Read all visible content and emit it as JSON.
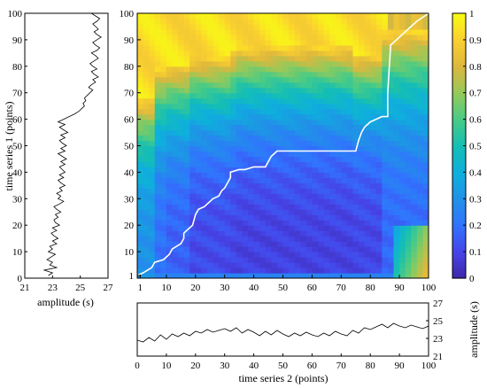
{
  "chart_data": [
    {
      "type": "line",
      "panel": "left",
      "xlabel": "amplitude (s)",
      "ylabel": "time series 1 (points)",
      "xlim": [
        21,
        27
      ],
      "ylim": [
        0,
        100
      ],
      "xticks": [
        21,
        23,
        25,
        27
      ],
      "yticks": [
        0,
        10,
        20,
        30,
        40,
        50,
        60,
        70,
        80,
        90,
        100
      ],
      "x": [
        22.7,
        23.0,
        22.4,
        23.3,
        22.8,
        23.0,
        22.6,
        22.9,
        23.2,
        22.7,
        23.0,
        22.8,
        23.3,
        23.0,
        23.4,
        23.1,
        22.9,
        23.3,
        23.0,
        23.5,
        23.2,
        23.1,
        23.4,
        23.2,
        23.6,
        23.3,
        23.1,
        23.5,
        23.8,
        23.4,
        23.6,
        23.3,
        23.7,
        23.5,
        23.9,
        23.6,
        23.4,
        23.8,
        23.5,
        23.9,
        23.7,
        23.5,
        23.9,
        23.6,
        24.0,
        23.7,
        23.4,
        23.9,
        23.6,
        24.0,
        23.7,
        23.5,
        23.9,
        23.6,
        24.1,
        23.8,
        23.5,
        23.9,
        23.4,
        23.8,
        24.2,
        24.6,
        24.9,
        25.1,
        25.3,
        25.2,
        25.4,
        25.3,
        25.5,
        25.7,
        25.9,
        25.6,
        25.8,
        26.1,
        25.9,
        26.3,
        26.0,
        25.8,
        26.2,
        25.9,
        25.7,
        26.0,
        26.3,
        26.1,
        25.8,
        26.2,
        26.4,
        26.1,
        25.9,
        26.2,
        26.5,
        26.2,
        26.0,
        26.3,
        26.1,
        25.9,
        26.2,
        26.4,
        26.1,
        25.8
      ],
      "y": [
        1,
        2,
        3,
        4,
        5,
        6,
        7,
        8,
        9,
        10,
        11,
        12,
        13,
        14,
        15,
        16,
        17,
        18,
        19,
        20,
        21,
        22,
        23,
        24,
        25,
        26,
        27,
        28,
        29,
        30,
        31,
        32,
        33,
        34,
        35,
        36,
        37,
        38,
        39,
        40,
        41,
        42,
        43,
        44,
        45,
        46,
        47,
        48,
        49,
        50,
        51,
        52,
        53,
        54,
        55,
        56,
        57,
        58,
        59,
        60,
        61,
        62,
        63,
        64,
        65,
        66,
        67,
        68,
        69,
        70,
        71,
        72,
        73,
        74,
        75,
        76,
        77,
        78,
        79,
        80,
        81,
        82,
        83,
        84,
        85,
        86,
        87,
        88,
        89,
        90,
        91,
        92,
        93,
        94,
        95,
        96,
        97,
        98,
        99,
        100
      ]
    },
    {
      "type": "heatmap",
      "panel": "main",
      "xlim": [
        0,
        100
      ],
      "ylim": [
        0,
        100
      ],
      "xticks": [
        1,
        10,
        20,
        30,
        40,
        50,
        60,
        70,
        80,
        90,
        100
      ],
      "yticks": [
        1,
        10,
        20,
        30,
        40,
        50,
        60,
        70,
        80,
        90,
        100
      ],
      "colormap": "parula",
      "clim": [
        0,
        1
      ],
      "colorbar_ticks": [
        0,
        0.1,
        0.2,
        0.3,
        0.4,
        0.5,
        0.6,
        0.7,
        0.8,
        0.9,
        1
      ],
      "column_bands": [
        {
          "x0": 0,
          "x1": 6,
          "top_edge": 68,
          "floor": 0.3
        },
        {
          "x0": 6,
          "x1": 11,
          "top_edge": 80,
          "floor": 0.2
        },
        {
          "x0": 11,
          "x1": 19,
          "top_edge": 81,
          "floor": 0.16
        },
        {
          "x0": 19,
          "x1": 32,
          "top_edge": 84,
          "floor": 0.11
        },
        {
          "x0": 32,
          "x1": 34,
          "top_edge": 86,
          "floor": 0.1
        },
        {
          "x0": 34,
          "x1": 75,
          "top_edge": 88,
          "floor": 0.09
        },
        {
          "x0": 75,
          "x1": 85,
          "top_edge": 85,
          "floor": 0.1
        },
        {
          "x0": 85,
          "x1": 100,
          "top_edge": 94,
          "floor": 0.18
        }
      ],
      "warping_path": {
        "x": [
          0,
          2,
          5,
          6,
          9,
          11,
          12,
          15,
          16,
          16,
          17,
          19,
          20,
          21,
          23,
          24,
          25,
          26,
          28,
          29,
          30,
          31,
          32,
          32,
          35,
          37,
          40,
          44,
          45,
          46,
          48,
          50,
          55,
          60,
          65,
          70,
          75,
          76,
          77,
          78,
          79,
          80,
          82,
          84,
          86,
          86,
          87,
          90,
          93,
          96,
          100
        ],
        "y": [
          1,
          2,
          4,
          6,
          7,
          9,
          11,
          13,
          15,
          17,
          18,
          20,
          24,
          26,
          27,
          28,
          29,
          30,
          31,
          33,
          34,
          36,
          38,
          40,
          41,
          41,
          42,
          42,
          44,
          46,
          48,
          48,
          48,
          48,
          48,
          48,
          48,
          52,
          55,
          57,
          58,
          59,
          60,
          61,
          61,
          70,
          88,
          91,
          94,
          97,
          100
        ]
      }
    },
    {
      "type": "line",
      "panel": "bottom",
      "xlabel": "time series 2 (points)",
      "ylabel": "amplitude (s)",
      "xlim": [
        0,
        100
      ],
      "ylim": [
        21,
        27
      ],
      "xticks": [
        0,
        10,
        20,
        30,
        40,
        50,
        60,
        70,
        80,
        90,
        100
      ],
      "yticks": [
        21,
        23,
        25,
        27
      ],
      "x": [
        0,
        2,
        4,
        6,
        8,
        10,
        12,
        14,
        16,
        18,
        20,
        22,
        24,
        26,
        28,
        30,
        32,
        34,
        36,
        38,
        40,
        42,
        44,
        46,
        48,
        50,
        52,
        54,
        56,
        58,
        60,
        62,
        64,
        66,
        68,
        70,
        72,
        74,
        76,
        78,
        80,
        82,
        84,
        86,
        88,
        90,
        92,
        94,
        96,
        98,
        100
      ],
      "y": [
        22.8,
        22.6,
        23.1,
        22.7,
        23.4,
        22.9,
        23.5,
        23.2,
        23.6,
        23.3,
        23.8,
        23.6,
        24.0,
        23.7,
        23.9,
        24.1,
        23.8,
        24.2,
        23.6,
        24.0,
        23.7,
        23.3,
        23.8,
        23.4,
        23.9,
        23.5,
        23.2,
        23.6,
        23.3,
        23.7,
        23.4,
        23.2,
        23.6,
        23.3,
        23.8,
        23.5,
        23.3,
        23.9,
        23.6,
        24.2,
        24.0,
        24.3,
        24.6,
        24.2,
        24.7,
        24.4,
        24.2,
        24.5,
        24.3,
        24.1,
        24.4
      ]
    }
  ]
}
